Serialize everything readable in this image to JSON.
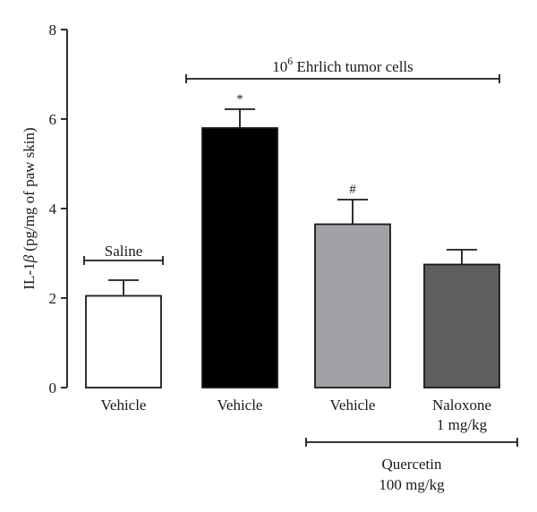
{
  "chart_data": {
    "type": "bar",
    "ylabel_main": "IL-1",
    "ylabel_greek": "β",
    "ylabel_rest": " (pg/mg of paw skin)",
    "ylim": [
      0,
      8
    ],
    "yticks": [
      "0",
      "2",
      "4",
      "6",
      "8"
    ],
    "categories": [
      {
        "line1": "Vehicle",
        "line2": ""
      },
      {
        "line1": "Vehicle",
        "line2": ""
      },
      {
        "line1": "Vehicle",
        "line2": ""
      },
      {
        "line1": "Naloxone",
        "line2": "1 mg/kg"
      }
    ],
    "values": [
      2.05,
      5.8,
      3.65,
      2.75
    ],
    "errors": [
      0.35,
      0.42,
      0.55,
      0.33
    ],
    "colors": [
      "#ffffff",
      "#000000",
      "#a2a2a6",
      "#5e5e5e"
    ],
    "significance": [
      "",
      "*",
      "#",
      ""
    ],
    "group_labels": {
      "saline": "Saline",
      "tumor_exp": "6",
      "tumor_base": "10",
      "tumor_rest": " Ehrlich tumor cells",
      "quercetin_line1": "Quercetin",
      "quercetin_line2": "100 mg/kg"
    }
  }
}
